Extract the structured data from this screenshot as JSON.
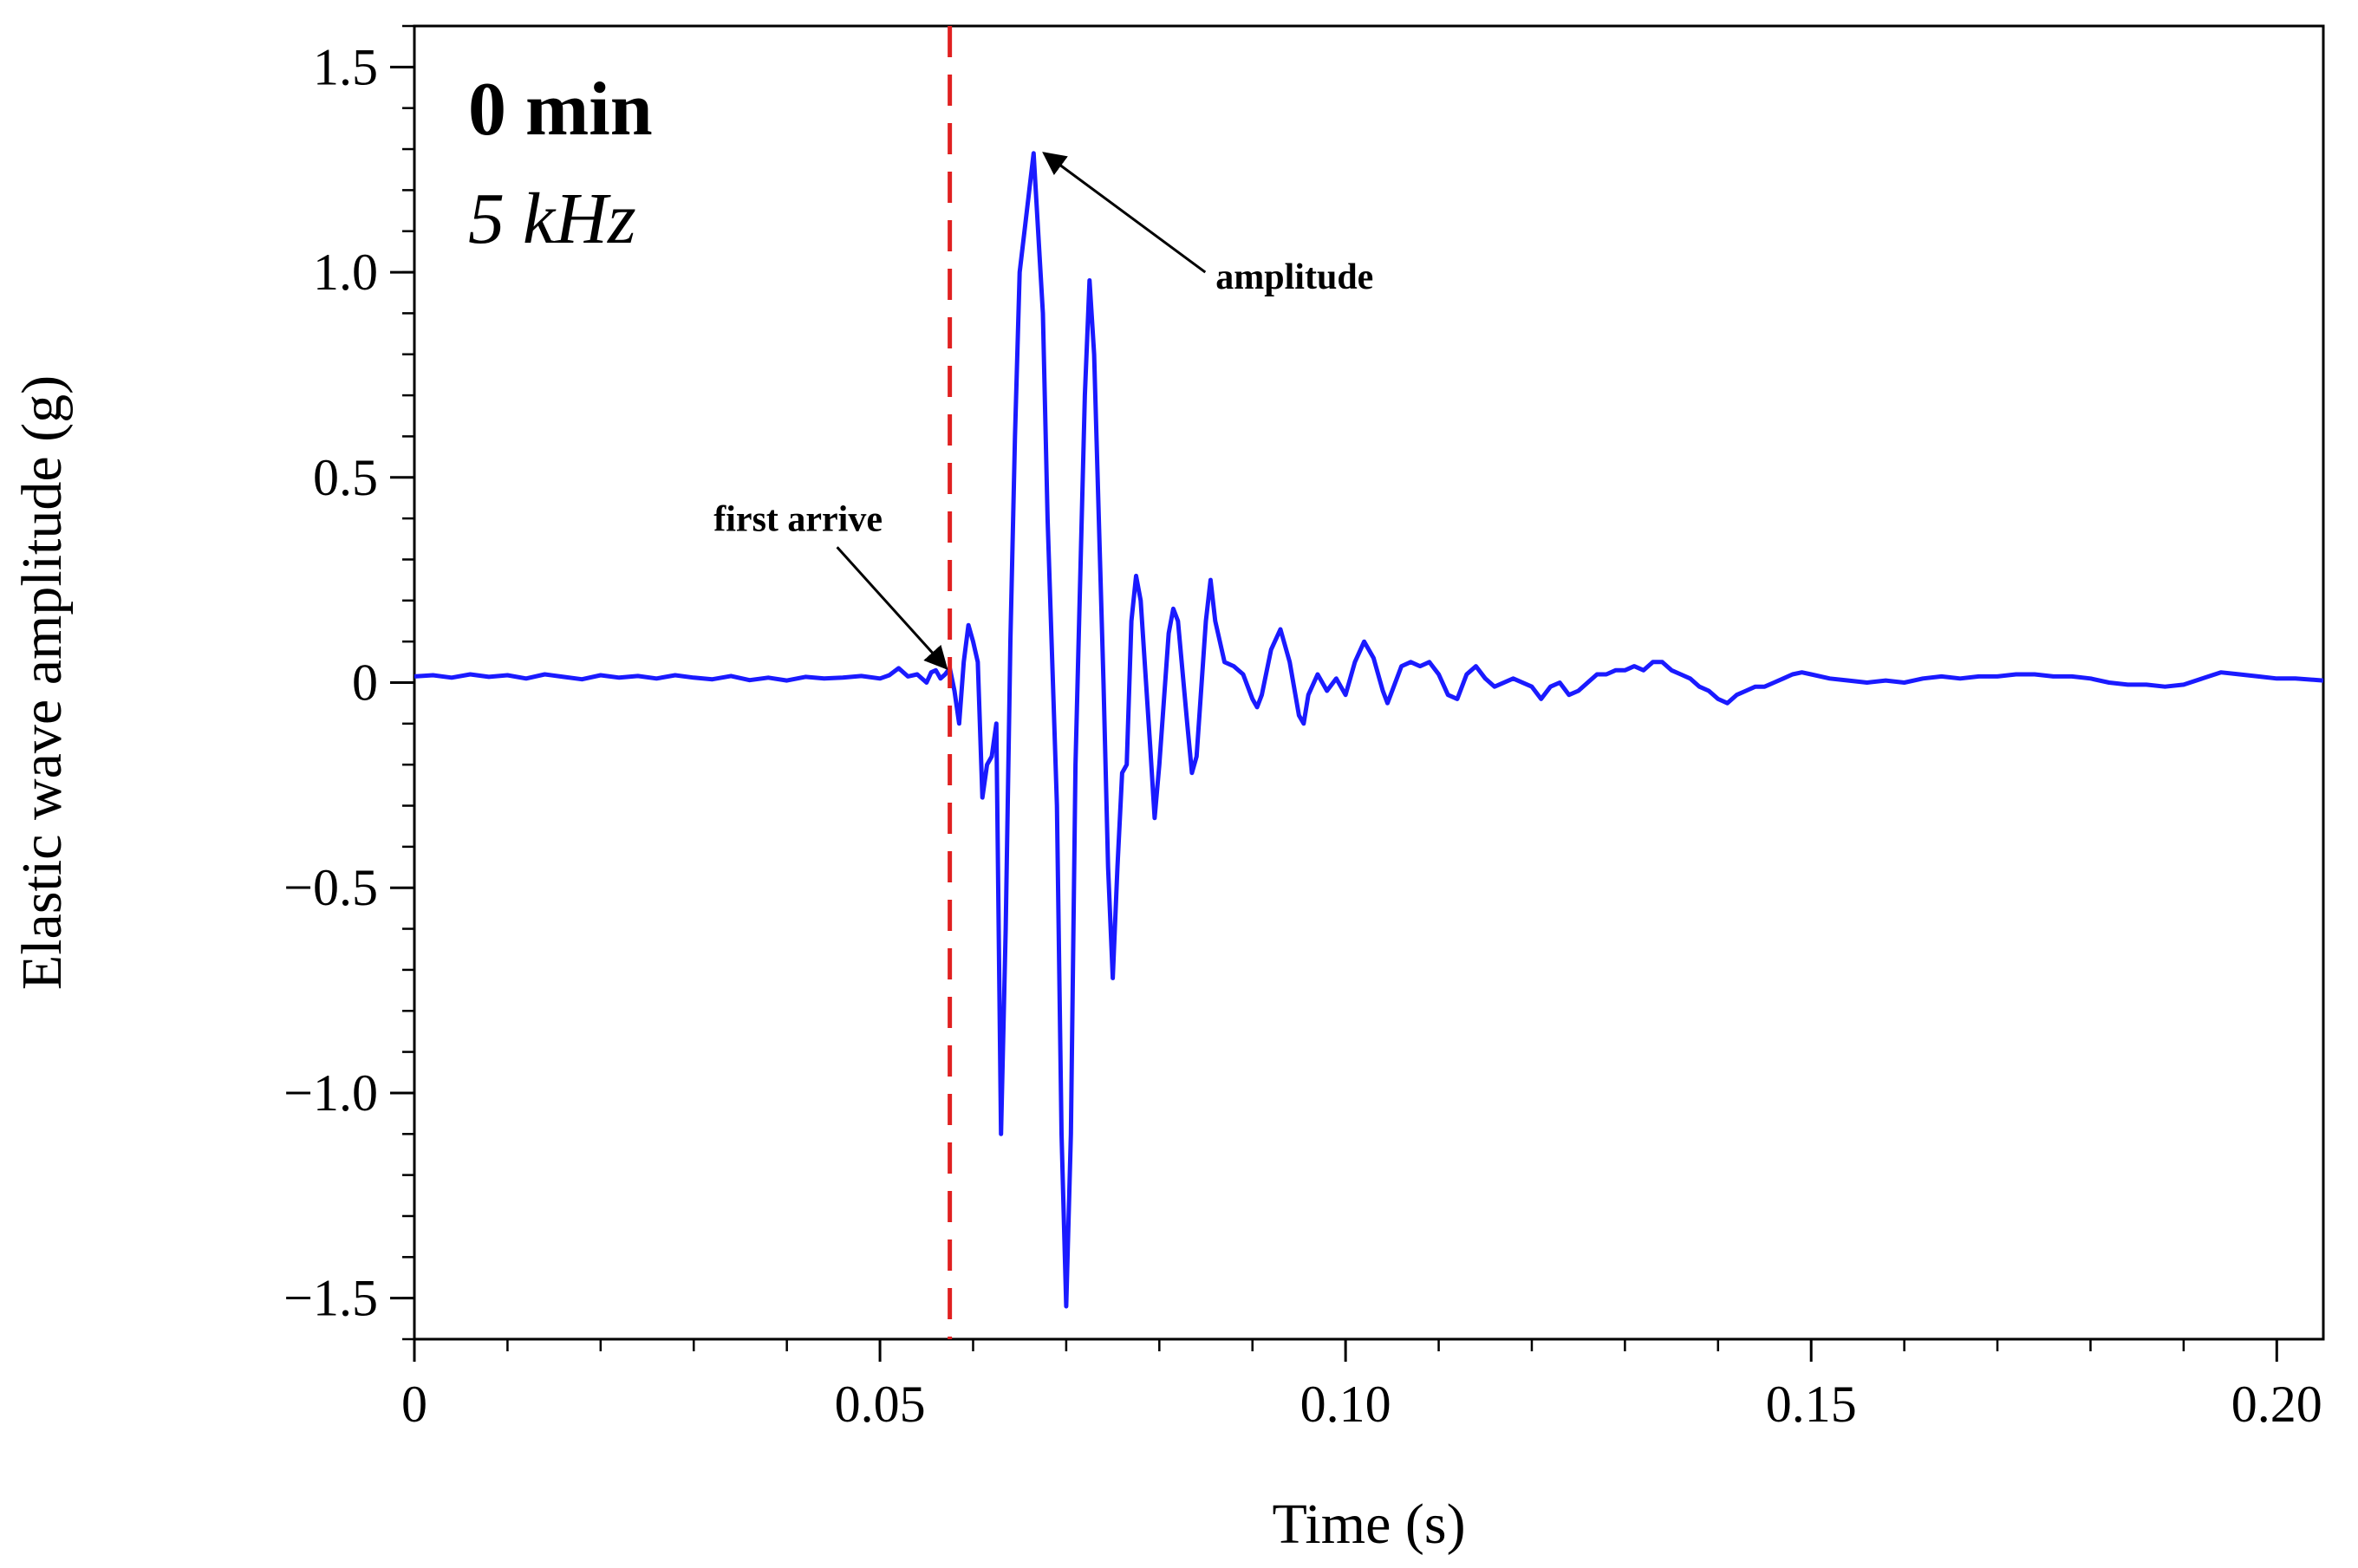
{
  "chart_data": {
    "type": "line",
    "title": "",
    "xlabel": "Time (s)",
    "ylabel": "Elastic wave amplitude (g)",
    "xlim": [
      0,
      0.205
    ],
    "ylim": [
      -1.6,
      1.6
    ],
    "grid": false,
    "x_ticks": [
      0,
      0.05,
      0.1,
      0.15,
      0.2
    ],
    "x_tick_labels": [
      "0",
      "0.05",
      "0.10",
      "0.15",
      "0.20"
    ],
    "x_minor_step": 0.01,
    "y_ticks": [
      -1.5,
      -1.0,
      -0.5,
      0,
      0.5,
      1.0,
      1.5
    ],
    "y_tick_labels": [
      "−1.5",
      "−1.0",
      "−0.5",
      "0",
      "0.5",
      "1.0",
      "1.5"
    ],
    "y_minor_step": 0.1,
    "panel_label": {
      "time": "0 min",
      "frequency": "5 kHz"
    },
    "first_arrival": {
      "x": 0.0575,
      "label": "first arrive",
      "color": "#e02020"
    },
    "peak_annotation": {
      "x": 0.0665,
      "y": 1.29,
      "label": "amplitude"
    },
    "series": [
      {
        "name": "Elastic wave amplitude",
        "color": "#1a1aff",
        "points": [
          [
            0,
            0.015
          ],
          [
            0.002,
            0.018
          ],
          [
            0.004,
            0.012
          ],
          [
            0.006,
            0.02
          ],
          [
            0.008,
            0.014
          ],
          [
            0.01,
            0.018
          ],
          [
            0.012,
            0.01
          ],
          [
            0.014,
            0.02
          ],
          [
            0.016,
            0.014
          ],
          [
            0.018,
            0.008
          ],
          [
            0.02,
            0.018
          ],
          [
            0.022,
            0.012
          ],
          [
            0.024,
            0.016
          ],
          [
            0.026,
            0.01
          ],
          [
            0.028,
            0.018
          ],
          [
            0.03,
            0.012
          ],
          [
            0.032,
            0.008
          ],
          [
            0.034,
            0.016
          ],
          [
            0.036,
            0.006
          ],
          [
            0.038,
            0.012
          ],
          [
            0.04,
            0.005
          ],
          [
            0.042,
            0.014
          ],
          [
            0.044,
            0.01
          ],
          [
            0.046,
            0.012
          ],
          [
            0.048,
            0.016
          ],
          [
            0.05,
            0.01
          ],
          [
            0.051,
            0.018
          ],
          [
            0.052,
            0.035
          ],
          [
            0.053,
            0.015
          ],
          [
            0.054,
            0.02
          ],
          [
            0.055,
            0.0
          ],
          [
            0.0555,
            0.025
          ],
          [
            0.056,
            0.03
          ],
          [
            0.0565,
            0.01
          ],
          [
            0.057,
            0.02
          ],
          [
            0.0575,
            0.035
          ],
          [
            0.058,
            -0.02
          ],
          [
            0.0585,
            -0.1
          ],
          [
            0.059,
            0.05
          ],
          [
            0.0595,
            0.14
          ],
          [
            0.06,
            0.1
          ],
          [
            0.0605,
            0.05
          ],
          [
            0.061,
            -0.28
          ],
          [
            0.0615,
            -0.2
          ],
          [
            0.062,
            -0.18
          ],
          [
            0.0625,
            -0.1
          ],
          [
            0.063,
            -1.1
          ],
          [
            0.0635,
            -0.6
          ],
          [
            0.064,
            0.1
          ],
          [
            0.0645,
            0.6
          ],
          [
            0.065,
            1.0
          ],
          [
            0.0665,
            1.29
          ],
          [
            0.0675,
            0.9
          ],
          [
            0.068,
            0.4
          ],
          [
            0.069,
            -0.3
          ],
          [
            0.0695,
            -1.1
          ],
          [
            0.07,
            -1.52
          ],
          [
            0.0705,
            -1.1
          ],
          [
            0.071,
            -0.2
          ],
          [
            0.072,
            0.7
          ],
          [
            0.0725,
            0.98
          ],
          [
            0.073,
            0.8
          ],
          [
            0.074,
            0.0
          ],
          [
            0.0745,
            -0.45
          ],
          [
            0.075,
            -0.72
          ],
          [
            0.0755,
            -0.45
          ],
          [
            0.076,
            -0.22
          ],
          [
            0.0765,
            -0.2
          ],
          [
            0.077,
            0.15
          ],
          [
            0.0775,
            0.26
          ],
          [
            0.078,
            0.2
          ],
          [
            0.079,
            -0.15
          ],
          [
            0.0795,
            -0.33
          ],
          [
            0.08,
            -0.2
          ],
          [
            0.081,
            0.12
          ],
          [
            0.0815,
            0.18
          ],
          [
            0.082,
            0.15
          ],
          [
            0.083,
            -0.1
          ],
          [
            0.0835,
            -0.22
          ],
          [
            0.084,
            -0.18
          ],
          [
            0.085,
            0.15
          ],
          [
            0.0855,
            0.25
          ],
          [
            0.086,
            0.15
          ],
          [
            0.087,
            0.05
          ],
          [
            0.088,
            0.04
          ],
          [
            0.089,
            0.02
          ],
          [
            0.09,
            -0.04
          ],
          [
            0.0905,
            -0.06
          ],
          [
            0.091,
            -0.03
          ],
          [
            0.092,
            0.08
          ],
          [
            0.093,
            0.13
          ],
          [
            0.094,
            0.05
          ],
          [
            0.095,
            -0.08
          ],
          [
            0.0955,
            -0.1
          ],
          [
            0.096,
            -0.03
          ],
          [
            0.097,
            0.02
          ],
          [
            0.098,
            -0.02
          ],
          [
            0.099,
            0.01
          ],
          [
            0.1,
            -0.03
          ],
          [
            0.101,
            0.05
          ],
          [
            0.102,
            0.1
          ],
          [
            0.103,
            0.06
          ],
          [
            0.104,
            -0.02
          ],
          [
            0.1045,
            -0.05
          ],
          [
            0.105,
            -0.02
          ],
          [
            0.106,
            0.04
          ],
          [
            0.107,
            0.05
          ],
          [
            0.108,
            0.04
          ],
          [
            0.109,
            0.05
          ],
          [
            0.11,
            0.02
          ],
          [
            0.111,
            -0.03
          ],
          [
            0.112,
            -0.04
          ],
          [
            0.113,
            0.02
          ],
          [
            0.114,
            0.04
          ],
          [
            0.115,
            0.01
          ],
          [
            0.116,
            -0.01
          ],
          [
            0.118,
            0.01
          ],
          [
            0.12,
            -0.01
          ],
          [
            0.121,
            -0.04
          ],
          [
            0.122,
            -0.01
          ],
          [
            0.123,
            0.0
          ],
          [
            0.124,
            -0.03
          ],
          [
            0.125,
            -0.02
          ],
          [
            0.126,
            0.0
          ],
          [
            0.127,
            0.02
          ],
          [
            0.128,
            0.02
          ],
          [
            0.129,
            0.03
          ],
          [
            0.13,
            0.03
          ],
          [
            0.131,
            0.04
          ],
          [
            0.132,
            0.03
          ],
          [
            0.133,
            0.05
          ],
          [
            0.134,
            0.05
          ],
          [
            0.135,
            0.03
          ],
          [
            0.136,
            0.02
          ],
          [
            0.137,
            0.01
          ],
          [
            0.138,
            -0.01
          ],
          [
            0.139,
            -0.02
          ],
          [
            0.14,
            -0.04
          ],
          [
            0.141,
            -0.05
          ],
          [
            0.142,
            -0.03
          ],
          [
            0.143,
            -0.02
          ],
          [
            0.144,
            -0.01
          ],
          [
            0.145,
            -0.01
          ],
          [
            0.146,
            0.0
          ],
          [
            0.147,
            0.01
          ],
          [
            0.148,
            0.02
          ],
          [
            0.149,
            0.025
          ],
          [
            0.15,
            0.02
          ],
          [
            0.152,
            0.01
          ],
          [
            0.154,
            0.005
          ],
          [
            0.156,
            0.0
          ],
          [
            0.158,
            0.005
          ],
          [
            0.16,
            0.0
          ],
          [
            0.162,
            0.01
          ],
          [
            0.164,
            0.015
          ],
          [
            0.166,
            0.01
          ],
          [
            0.168,
            0.015
          ],
          [
            0.17,
            0.015
          ],
          [
            0.172,
            0.02
          ],
          [
            0.174,
            0.02
          ],
          [
            0.176,
            0.015
          ],
          [
            0.178,
            0.015
          ],
          [
            0.18,
            0.01
          ],
          [
            0.182,
            0.0
          ],
          [
            0.184,
            -0.005
          ],
          [
            0.186,
            -0.005
          ],
          [
            0.188,
            -0.01
          ],
          [
            0.19,
            -0.005
          ],
          [
            0.192,
            0.01
          ],
          [
            0.194,
            0.025
          ],
          [
            0.196,
            0.02
          ],
          [
            0.198,
            0.015
          ],
          [
            0.2,
            0.01
          ],
          [
            0.202,
            0.01
          ],
          [
            0.205,
            0.005
          ]
        ]
      }
    ]
  }
}
